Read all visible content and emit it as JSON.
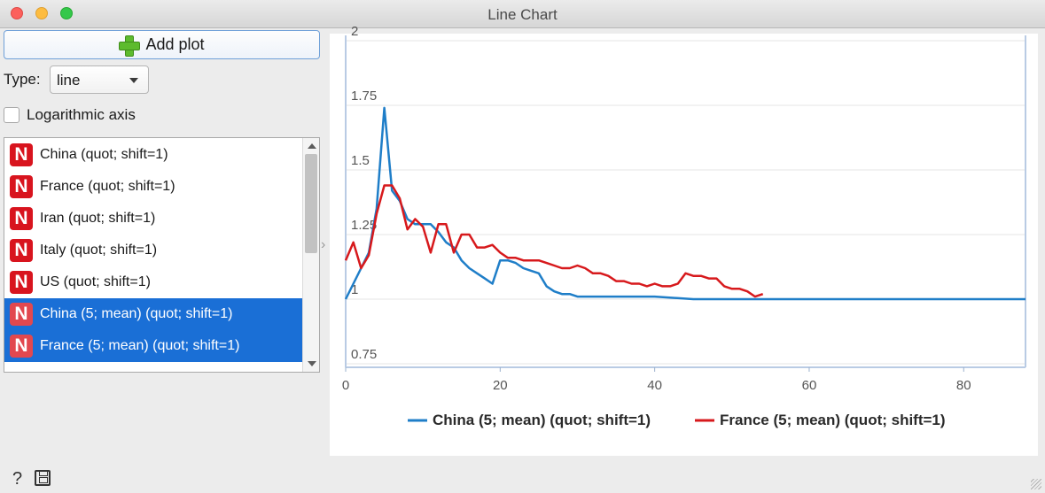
{
  "window": {
    "title": "Line Chart"
  },
  "controls": {
    "add_plot_label": "Add plot",
    "type_label": "Type:",
    "type_value": "line",
    "log_axis_label": "Logarithmic axis",
    "log_axis_checked": false
  },
  "series_list": [
    {
      "label": "China (quot; shift=1)",
      "icon": "N",
      "selected": false
    },
    {
      "label": "France (quot; shift=1)",
      "icon": "N",
      "selected": false
    },
    {
      "label": "Iran (quot; shift=1)",
      "icon": "N",
      "selected": false
    },
    {
      "label": "Italy (quot; shift=1)",
      "icon": "N",
      "selected": false
    },
    {
      "label": "US (quot; shift=1)",
      "icon": "N",
      "selected": false
    },
    {
      "label": "China (5; mean) (quot; shift=1)",
      "icon": "N",
      "selected": true
    },
    {
      "label": "France (5; mean) (quot; shift=1)",
      "icon": "N",
      "selected": true
    }
  ],
  "icons": {
    "add": "plus-icon",
    "help": "help-icon",
    "save": "save-icon",
    "item": "n-icon"
  },
  "chart_data": {
    "type": "line",
    "title": "",
    "xlabel": "",
    "ylabel": "",
    "xlim": [
      0,
      88
    ],
    "ylim": [
      0.75,
      2
    ],
    "x_ticks": [
      0,
      20,
      40,
      60,
      80
    ],
    "y_ticks": [
      0.75,
      1,
      1.25,
      1.5,
      1.75,
      2
    ],
    "y_tick_labels": [
      "0.75",
      "1",
      "1.25",
      "1.5",
      "1.75",
      "2"
    ],
    "grid": "horizontal",
    "legend_position": "bottom",
    "series": [
      {
        "name": "China (5; mean) (quot; shift=1)",
        "color": "#1f7ec8",
        "x": [
          0,
          1,
          2,
          3,
          4,
          5,
          6,
          7,
          8,
          9,
          10,
          11,
          12,
          13,
          14,
          15,
          16,
          17,
          18,
          19,
          20,
          21,
          22,
          23,
          24,
          25,
          26,
          27,
          28,
          29,
          30,
          32,
          35,
          40,
          45,
          50,
          55,
          60,
          65,
          70,
          75,
          80,
          85,
          88
        ],
        "y": [
          1.0,
          1.06,
          1.12,
          1.18,
          1.35,
          1.74,
          1.42,
          1.38,
          1.31,
          1.29,
          1.29,
          1.29,
          1.26,
          1.22,
          1.2,
          1.15,
          1.12,
          1.1,
          1.08,
          1.06,
          1.15,
          1.15,
          1.14,
          1.12,
          1.11,
          1.1,
          1.05,
          1.03,
          1.02,
          1.02,
          1.01,
          1.01,
          1.01,
          1.01,
          1.0,
          1.0,
          1.0,
          1.0,
          1.0,
          1.0,
          1.0,
          1.0,
          1.0,
          1.0
        ]
      },
      {
        "name": "France (5; mean) (quot; shift=1)",
        "color": "#d7191c",
        "x": [
          0,
          1,
          2,
          3,
          4,
          5,
          6,
          7,
          8,
          9,
          10,
          11,
          12,
          13,
          14,
          15,
          16,
          17,
          18,
          19,
          20,
          21,
          22,
          23,
          24,
          25,
          26,
          27,
          28,
          29,
          30,
          31,
          32,
          33,
          34,
          35,
          36,
          37,
          38,
          39,
          40,
          41,
          42,
          43,
          44,
          45,
          46,
          47,
          48,
          49,
          50,
          51,
          52,
          53,
          54
        ],
        "y": [
          1.15,
          1.22,
          1.12,
          1.17,
          1.33,
          1.44,
          1.44,
          1.39,
          1.27,
          1.31,
          1.28,
          1.18,
          1.29,
          1.29,
          1.18,
          1.25,
          1.25,
          1.2,
          1.2,
          1.21,
          1.18,
          1.16,
          1.16,
          1.15,
          1.15,
          1.15,
          1.14,
          1.13,
          1.12,
          1.12,
          1.13,
          1.12,
          1.1,
          1.1,
          1.09,
          1.07,
          1.07,
          1.06,
          1.06,
          1.05,
          1.06,
          1.05,
          1.05,
          1.06,
          1.1,
          1.09,
          1.09,
          1.08,
          1.08,
          1.05,
          1.04,
          1.04,
          1.03,
          1.01,
          1.02
        ]
      }
    ]
  }
}
